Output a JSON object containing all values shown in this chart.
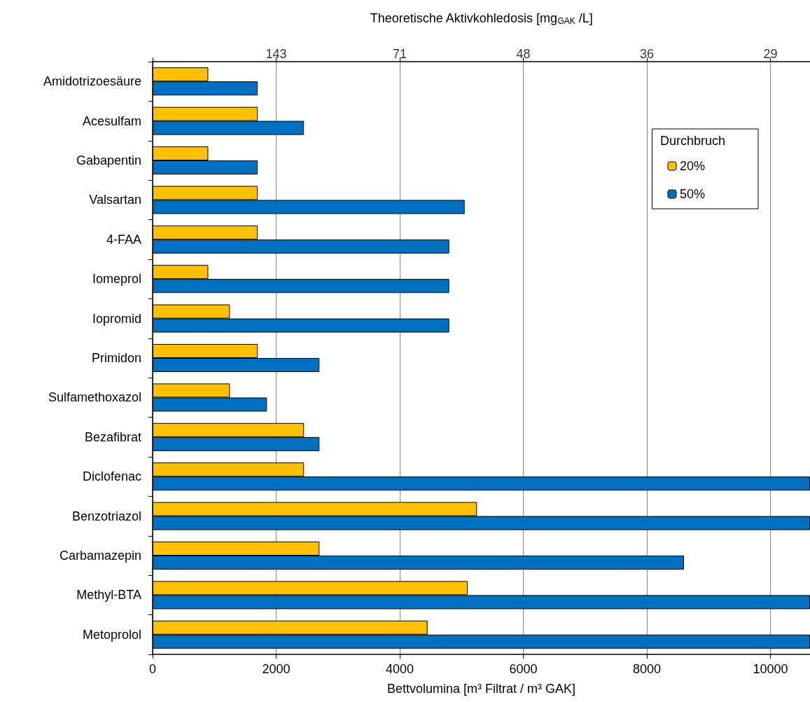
{
  "chart_data": {
    "type": "bar",
    "orientation": "horizontal",
    "xlabel": "Bettvolumina [m³ Filtrat / m³ GAK]",
    "x2label": "Theoretische Aktivkohledosis [mg$_{GAK}$ /L]",
    "legend_title": "Durchbruch",
    "categories": [
      "Amidotrizoesäure",
      "Acesulfam",
      "Gabapentin",
      "Valsartan",
      "4-FAA",
      "Iomeprol",
      "Iopromid",
      "Primidon",
      "Sulfamethoxazol",
      "Bezafibrat",
      "Diclofenac",
      "Benzotriazol",
      "Carbamazepin",
      "Methyl-BTA",
      "Metoprolol"
    ],
    "series": [
      {
        "name": "20%",
        "color": "#ffc000",
        "values": [
          900,
          1700,
          900,
          1700,
          1700,
          900,
          1250,
          1700,
          1250,
          2450,
          2450,
          5250,
          2700,
          5100,
          4450
        ]
      },
      {
        "name": "50%",
        "color": "#0070c0",
        "values": [
          1700,
          2450,
          1700,
          5050,
          4800,
          4800,
          4800,
          2700,
          1850,
          2700,
          10640,
          10640,
          8600,
          10640,
          10640
        ]
      }
    ],
    "xlim": [
      0,
      10640
    ],
    "xticks": [
      0,
      2000,
      4000,
      6000,
      8000,
      10000
    ],
    "annotations": [
      "143",
      "71",
      "48",
      "36",
      "29"
    ],
    "grid": "x",
    "legend": "top right"
  }
}
